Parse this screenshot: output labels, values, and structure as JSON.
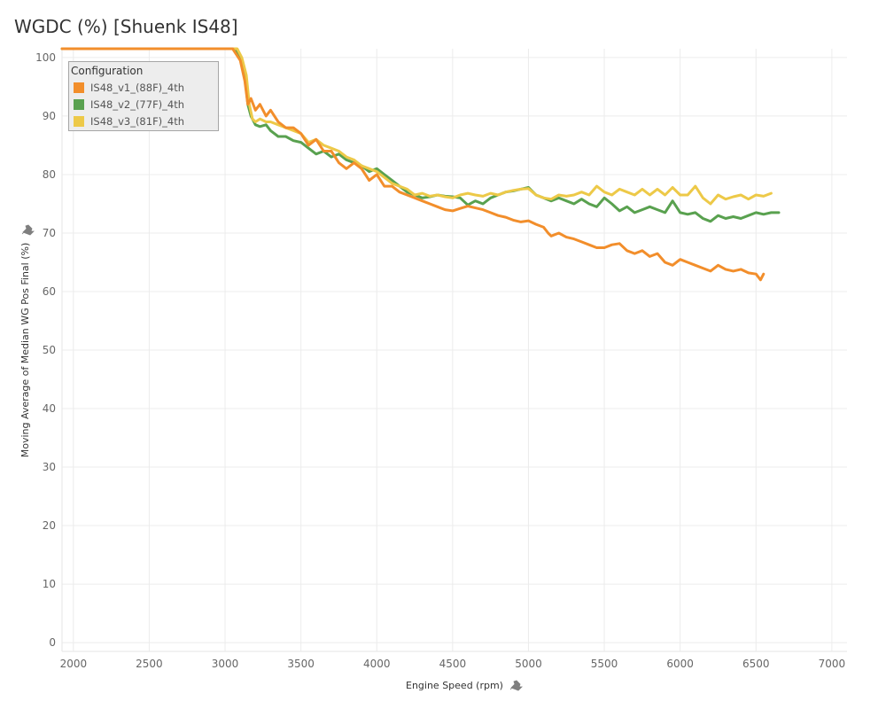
{
  "title": "WGDC (%) [Shuenk IS48]",
  "chart_data": {
    "type": "line",
    "title": "WGDC (%) [Shuenk IS48]",
    "xlabel": "Engine Speed (rpm)",
    "ylabel": "Moving Average of Median WG Pos Final (%)",
    "xlim": [
      1925,
      7100
    ],
    "ylim": [
      -1.5,
      101.5
    ],
    "xticks": [
      2000,
      2500,
      3000,
      3500,
      4000,
      4500,
      5000,
      5500,
      6000,
      6500,
      7000
    ],
    "yticks": [
      0,
      10,
      20,
      30,
      40,
      50,
      60,
      70,
      80,
      90,
      100
    ],
    "grid": true,
    "legend": {
      "title": "Configuration",
      "position": "top-left"
    },
    "series": [
      {
        "name": "IS48_v1_(88F)_4th",
        "color": "#f28e2b",
        "x": [
          1925,
          3050,
          3100,
          3130,
          3150,
          3170,
          3200,
          3230,
          3270,
          3300,
          3350,
          3400,
          3450,
          3500,
          3550,
          3600,
          3650,
          3700,
          3750,
          3800,
          3850,
          3900,
          3950,
          4000,
          4050,
          4100,
          4150,
          4200,
          4250,
          4300,
          4350,
          4400,
          4450,
          4500,
          4550,
          4600,
          4650,
          4700,
          4750,
          4800,
          4850,
          4900,
          4950,
          5000,
          5050,
          5100,
          5130,
          5150,
          5200,
          5250,
          5300,
          5350,
          5400,
          5450,
          5500,
          5550,
          5600,
          5650,
          5700,
          5750,
          5800,
          5850,
          5900,
          5950,
          6000,
          6050,
          6100,
          6150,
          6200,
          6250,
          6300,
          6350,
          6400,
          6450,
          6500,
          6530,
          6550
        ],
        "y": [
          101.5,
          101.5,
          99.5,
          96,
          92,
          93,
          91,
          92,
          90,
          91,
          89,
          88,
          88,
          87,
          85,
          86,
          84,
          84,
          82,
          81,
          82,
          81,
          79,
          80,
          78,
          78,
          77,
          76.5,
          76,
          75.5,
          75,
          74.5,
          74,
          73.8,
          74.2,
          74.6,
          74.3,
          74,
          73.5,
          73,
          72.7,
          72.2,
          71.9,
          72.1,
          71.5,
          71,
          70,
          69.5,
          70,
          69.3,
          69,
          68.5,
          68,
          67.5,
          67.5,
          68,
          68.2,
          67,
          66.5,
          67,
          66,
          66.5,
          65,
          64.5,
          65.5,
          65,
          64.5,
          64,
          63.5,
          64.5,
          63.8,
          63.5,
          63.8,
          63.2,
          63,
          62,
          63
        ]
      },
      {
        "name": "IS48_v2_(77F)_4th",
        "color": "#59a14f",
        "x": [
          1925,
          3070,
          3100,
          3130,
          3150,
          3170,
          3200,
          3230,
          3270,
          3300,
          3350,
          3400,
          3450,
          3500,
          3550,
          3600,
          3650,
          3700,
          3750,
          3800,
          3850,
          3900,
          3950,
          4000,
          4050,
          4100,
          4150,
          4200,
          4250,
          4300,
          4350,
          4400,
          4450,
          4500,
          4550,
          4600,
          4650,
          4700,
          4750,
          4800,
          4850,
          4900,
          4950,
          5000,
          5050,
          5100,
          5150,
          5200,
          5250,
          5300,
          5350,
          5400,
          5450,
          5500,
          5550,
          5600,
          5650,
          5700,
          5750,
          5800,
          5850,
          5900,
          5950,
          6000,
          6050,
          6100,
          6150,
          6200,
          6250,
          6300,
          6350,
          6400,
          6450,
          6500,
          6550,
          6600,
          6650
        ],
        "y": [
          101.5,
          101.5,
          100,
          97,
          92,
          90,
          88.5,
          88.2,
          88.5,
          87.5,
          86.5,
          86.5,
          85.8,
          85.5,
          84.5,
          83.5,
          84,
          83,
          83.5,
          82.5,
          82,
          81.5,
          80.5,
          81,
          80,
          79,
          78,
          77,
          76.5,
          76,
          76.2,
          76.5,
          76.3,
          76.2,
          76,
          74.8,
          75.5,
          75,
          76,
          76.5,
          77,
          77.2,
          77.5,
          77.8,
          76.5,
          76,
          75.5,
          76,
          75.5,
          75,
          75.8,
          75,
          74.5,
          76,
          75,
          73.8,
          74.5,
          73.5,
          74,
          74.5,
          74,
          73.5,
          75.5,
          73.5,
          73.2,
          73.5,
          72.5,
          72,
          73,
          72.5,
          72.8,
          72.5,
          73,
          73.5,
          73.2,
          73.5,
          73.5
        ]
      },
      {
        "name": "IS48_v3_(81F)_4th",
        "color": "#edc948",
        "x": [
          1925,
          3080,
          3110,
          3140,
          3160,
          3180,
          3200,
          3230,
          3270,
          3300,
          3350,
          3400,
          3450,
          3500,
          3550,
          3600,
          3650,
          3700,
          3750,
          3800,
          3850,
          3900,
          3950,
          4000,
          4050,
          4100,
          4150,
          4200,
          4250,
          4300,
          4350,
          4400,
          4450,
          4500,
          4550,
          4600,
          4650,
          4700,
          4750,
          4800,
          4850,
          4900,
          4950,
          5000,
          5050,
          5100,
          5150,
          5200,
          5250,
          5300,
          5350,
          5400,
          5450,
          5500,
          5550,
          5600,
          5650,
          5700,
          5750,
          5800,
          5850,
          5900,
          5950,
          6000,
          6050,
          6100,
          6150,
          6200,
          6250,
          6300,
          6350,
          6400,
          6450,
          6500,
          6550,
          6600
        ],
        "y": [
          101.5,
          101.5,
          100,
          97,
          92,
          89.5,
          89,
          89.5,
          89,
          89,
          88.5,
          88,
          87.5,
          87,
          85.5,
          86,
          85,
          84.5,
          84,
          83,
          82.5,
          81.5,
          81,
          80.5,
          79.5,
          78.5,
          78,
          77.5,
          76.5,
          76.8,
          76.3,
          76.5,
          76.2,
          76,
          76.5,
          76.8,
          76.5,
          76.3,
          76.8,
          76.5,
          77,
          77.3,
          77.5,
          77.6,
          76.5,
          76,
          75.8,
          76.5,
          76.3,
          76.5,
          77,
          76.5,
          78,
          77,
          76.5,
          77.5,
          77,
          76.5,
          77.5,
          76.5,
          77.5,
          76.5,
          77.8,
          76.5,
          76.5,
          78,
          76,
          75,
          76.5,
          75.8,
          76.2,
          76.5,
          75.8,
          76.5,
          76.3,
          76.8
        ]
      }
    ]
  }
}
